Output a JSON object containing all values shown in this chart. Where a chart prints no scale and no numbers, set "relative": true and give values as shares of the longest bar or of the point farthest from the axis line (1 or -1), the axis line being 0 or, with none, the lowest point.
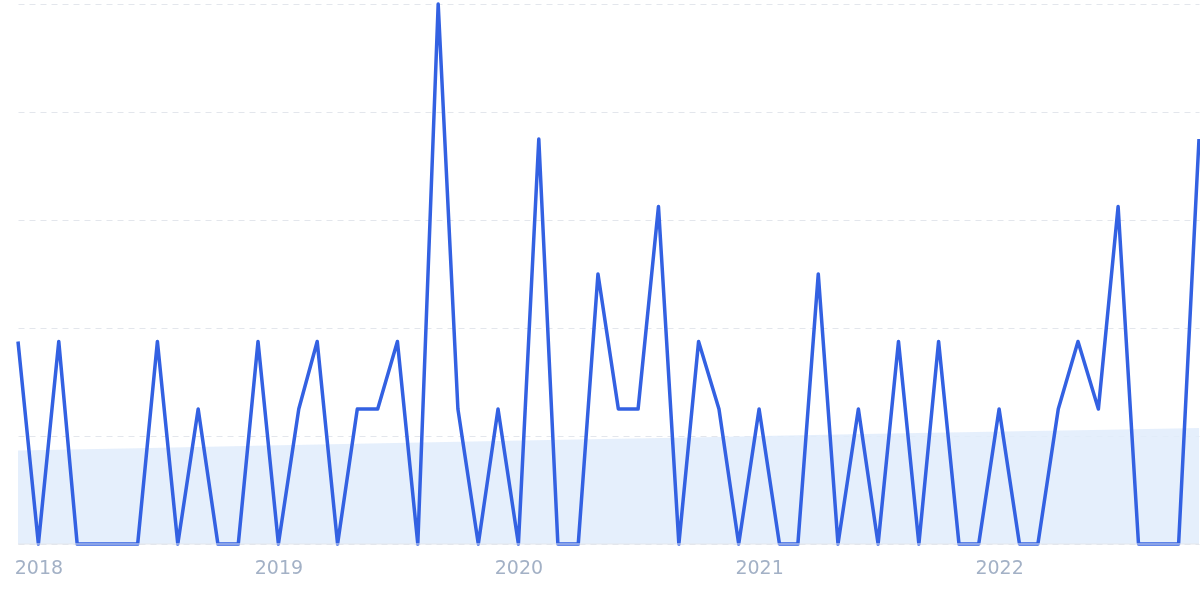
{
  "chart_data": {
    "type": "line",
    "relative": true,
    "grid": "y",
    "xlim": [
      "2017-12",
      "2022-11"
    ],
    "xticks": [
      "2018",
      "2019",
      "2020",
      "2021",
      "2022"
    ],
    "series": [
      {
        "type": "area",
        "color": "#e1ecfb",
        "x": [
          "2017-12",
          "2020-06",
          "2022-11"
        ],
        "values": [
          0.173,
          0.195,
          0.215
        ]
      },
      {
        "color": "#3361e2",
        "x": [
          "2017-12",
          "2018-01",
          "2018-02",
          "2018-03",
          "2018-04",
          "2018-05",
          "2018-06",
          "2018-07",
          "2018-08",
          "2018-09",
          "2018-10",
          "2018-11",
          "2018-12",
          "2019-01",
          "2019-02",
          "2019-03",
          "2019-04",
          "2019-05",
          "2019-06",
          "2019-07",
          "2019-08",
          "2019-09",
          "2019-10",
          "2019-11",
          "2019-12",
          "2020-01",
          "2020-02",
          "2020-03",
          "2020-04",
          "2020-05",
          "2020-06",
          "2020-07",
          "2020-08",
          "2020-09",
          "2020-10",
          "2020-11",
          "2020-12",
          "2021-01",
          "2021-02",
          "2021-03",
          "2021-04",
          "2021-05",
          "2021-06",
          "2021-07",
          "2021-08",
          "2021-09",
          "2021-10",
          "2021-11",
          "2021-12",
          "2022-01",
          "2022-02",
          "2022-03",
          "2022-04",
          "2022-05",
          "2022-06",
          "2022-07",
          "2022-08",
          "2022-09",
          "2022-10",
          "2022-11"
        ],
        "values": [
          0.375,
          0,
          0.375,
          0,
          0,
          0,
          0,
          0.375,
          0,
          0.25,
          0,
          0,
          0.375,
          0,
          0.25,
          0.375,
          0,
          0.25,
          0.25,
          0.375,
          0,
          1,
          0.25,
          0,
          0.25,
          0,
          0.75,
          0,
          0,
          0.5,
          0.25,
          0.25,
          0.625,
          0,
          0.375,
          0.25,
          0,
          0.25,
          0,
          0,
          0.5,
          0,
          0.25,
          0,
          0.375,
          0,
          0.375,
          0,
          0,
          0.25,
          0,
          0,
          0.25,
          0.375,
          0.25,
          0.625,
          0,
          0,
          0,
          0.75
        ]
      }
    ]
  }
}
